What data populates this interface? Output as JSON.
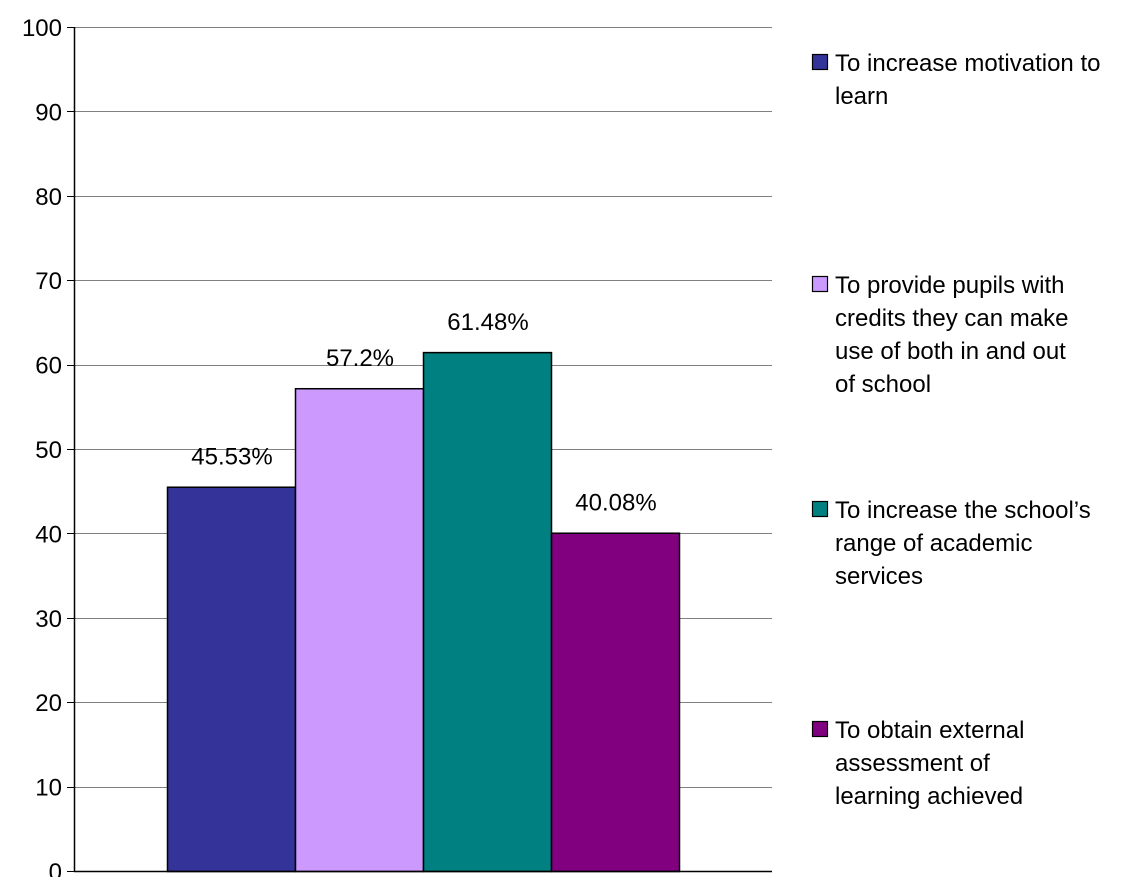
{
  "chart_data": {
    "type": "bar",
    "title": "",
    "xlabel": "",
    "ylabel": "",
    "ylim": [
      0,
      100
    ],
    "yticks": [
      0,
      10,
      20,
      30,
      40,
      50,
      60,
      70,
      80,
      90,
      100
    ],
    "grid": true,
    "legend_position": "right",
    "categories": [
      ""
    ],
    "series": [
      {
        "name": "To increase motivation to learn",
        "values": [
          45.53
        ],
        "data_label": "45.53%",
        "color": "#333399",
        "legend_lines": [
          "To increase motivation to",
          "learn"
        ]
      },
      {
        "name": "To provide pupils with credits they can make use of both in and out of school",
        "values": [
          57.2
        ],
        "data_label": "57.2%",
        "color": "#CC99FF",
        "legend_lines": [
          "To provide pupils with",
          "credits they can make",
          "use of both in and out",
          "of school"
        ]
      },
      {
        "name": "To increase the school’s range of academic services",
        "values": [
          61.48
        ],
        "data_label": "61.48%",
        "color": "#008080",
        "legend_lines": [
          "To increase the school’s",
          "range of academic",
          "services"
        ]
      },
      {
        "name": "To obtain external assessment of learning achieved",
        "values": [
          40.08
        ],
        "data_label": "40.08%",
        "color": "#800080",
        "legend_lines": [
          "To obtain external",
          "assessment of",
          "learning achieved"
        ]
      }
    ]
  }
}
